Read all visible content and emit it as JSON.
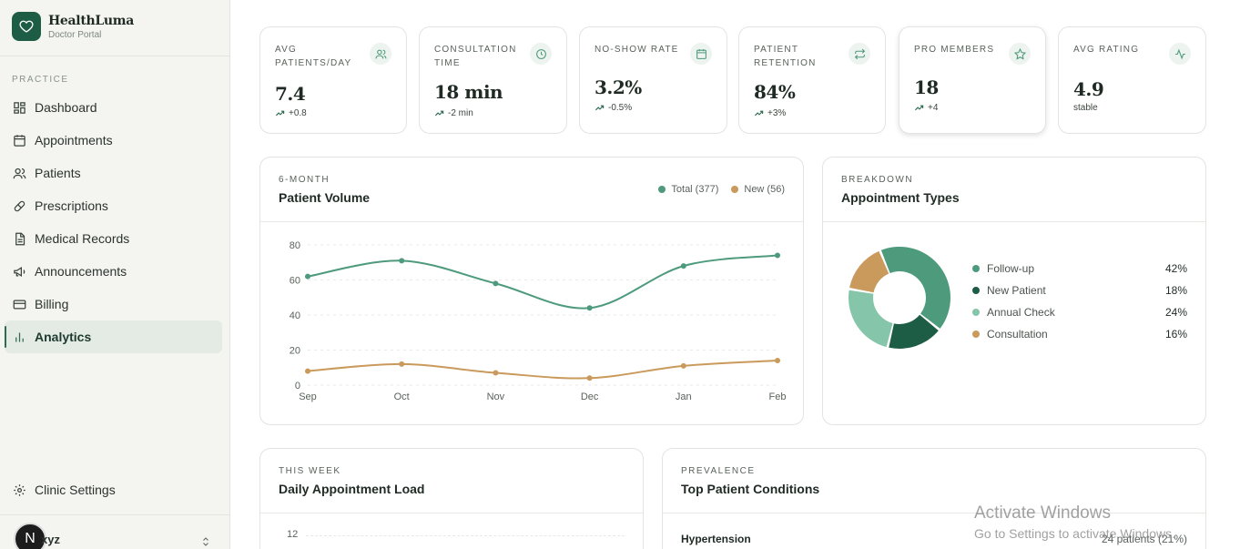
{
  "brand": {
    "name": "HealthLuma",
    "subtitle": "Doctor Portal"
  },
  "sidebar": {
    "section": "PRACTICE",
    "items": [
      {
        "label": "Dashboard",
        "icon": "grid-icon"
      },
      {
        "label": "Appointments",
        "icon": "calendar-icon"
      },
      {
        "label": "Patients",
        "icon": "users-icon"
      },
      {
        "label": "Prescriptions",
        "icon": "pill-icon"
      },
      {
        "label": "Medical Records",
        "icon": "file-icon"
      },
      {
        "label": "Announcements",
        "icon": "megaphone-icon"
      },
      {
        "label": "Billing",
        "icon": "credit-card-icon"
      },
      {
        "label": "Analytics",
        "icon": "bar-chart-icon",
        "active": true
      }
    ],
    "settings_label": "Clinic Settings",
    "user": {
      "initial": "N",
      "name": "xyz"
    }
  },
  "stats": [
    {
      "label": "AVG PATIENTS/DAY",
      "value": "7.4",
      "delta": "+0.8",
      "icon": "users-icon"
    },
    {
      "label": "CONSULTATION TIME",
      "value": "18 min",
      "delta": "-2 min",
      "icon": "clock-icon"
    },
    {
      "label": "NO-SHOW RATE",
      "value": "3.2%",
      "delta": "-0.5%",
      "icon": "calendar-icon"
    },
    {
      "label": "PATIENT RETENTION",
      "value": "84%",
      "delta": "+3%",
      "icon": "repeat-icon"
    },
    {
      "label": "PRO MEMBERS",
      "value": "18",
      "delta": "+4",
      "icon": "star-icon"
    },
    {
      "label": "AVG RATING",
      "value": "4.9",
      "delta": "stable",
      "icon": "activity-icon"
    }
  ],
  "volume": {
    "kicker": "6-MONTH",
    "title": "Patient Volume",
    "legend": [
      "Total (377)",
      "New (56)"
    ]
  },
  "types": {
    "kicker": "BREAKDOWN",
    "title": "Appointment Types"
  },
  "weekly": {
    "kicker": "THIS WEEK",
    "title": "Daily Appointment Load",
    "y_tick": "12"
  },
  "conditions": {
    "kicker": "PREVALENCE",
    "title": "Top Patient Conditions",
    "first": {
      "name": "Hypertension",
      "value": "24 patients (21%)"
    }
  },
  "colors": {
    "primary": "#4e9a7c",
    "dark": "#1d5c45",
    "light": "#85c5a9",
    "accent": "#c99a5b"
  },
  "chart_data": [
    {
      "type": "line",
      "categories": [
        "Sep",
        "Oct",
        "Nov",
        "Dec",
        "Jan",
        "Feb"
      ],
      "series": [
        {
          "name": "Total (377)",
          "values": [
            62,
            71,
            58,
            44,
            68,
            74
          ]
        },
        {
          "name": "New (56)",
          "values": [
            8,
            12,
            7,
            4,
            11,
            14
          ]
        }
      ],
      "yticks": [
        0,
        20,
        40,
        60,
        80
      ],
      "ylim": [
        0,
        80
      ],
      "grid": true
    },
    {
      "type": "pie",
      "categories": [
        "Follow-up",
        "New Patient",
        "Annual Check",
        "Consultation"
      ],
      "values": [
        42,
        18,
        24,
        16
      ],
      "labels": [
        "42%",
        "18%",
        "24%",
        "16%"
      ]
    }
  ],
  "watermark": {
    "line1": "Activate Windows",
    "line2": "Go to Settings to activate Windows."
  }
}
